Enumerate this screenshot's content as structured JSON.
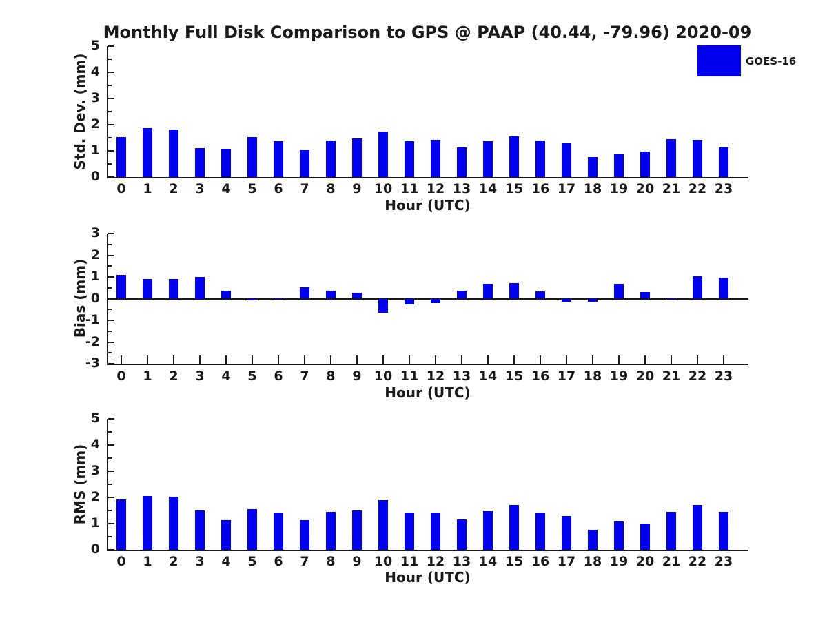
{
  "title": "Monthly Full Disk Comparison to GPS @ PAAP (40.44, -79.96) 2020-09",
  "legend": {
    "label": "GOES-16",
    "color": "#0000EE",
    "position": "top-right"
  },
  "chart_data": [
    {
      "type": "bar",
      "key": "std-dev",
      "ylabel": "Std. Dev. (mm)",
      "xlabel": "Hour (UTC)",
      "ylim": [
        0,
        5
      ],
      "yticks": [
        0,
        1,
        2,
        3,
        4,
        5
      ],
      "ytick_labels": [
        "0",
        "1",
        "2",
        "3",
        "4",
        "5"
      ],
      "minor_tick_interval": 0.5,
      "grid": false,
      "categories": [
        0,
        1,
        2,
        3,
        4,
        5,
        6,
        7,
        8,
        9,
        10,
        11,
        12,
        13,
        14,
        15,
        16,
        17,
        18,
        19,
        20,
        21,
        22,
        23
      ],
      "series": [
        {
          "name": "GOES-16",
          "color": "#0000EE",
          "values": [
            1.53,
            1.86,
            1.82,
            1.11,
            1.07,
            1.53,
            1.38,
            1.02,
            1.4,
            1.47,
            1.74,
            1.38,
            1.41,
            1.14,
            1.36,
            1.54,
            1.4,
            1.3,
            0.76,
            0.86,
            0.98,
            1.46,
            1.41,
            1.12
          ]
        }
      ]
    },
    {
      "type": "bar",
      "key": "bias",
      "ylabel": "Bias (mm)",
      "xlabel": "Hour (UTC)",
      "ylim": [
        -3,
        3
      ],
      "yticks": [
        -3,
        -2,
        -1,
        0,
        1,
        2,
        3
      ],
      "ytick_labels": [
        "-3",
        "-2",
        "-1",
        "0",
        "1",
        "2",
        "3"
      ],
      "minor_tick_interval": 0.5,
      "grid": false,
      "zero_line": true,
      "categories": [
        0,
        1,
        2,
        3,
        4,
        5,
        6,
        7,
        8,
        9,
        10,
        11,
        12,
        13,
        14,
        15,
        16,
        17,
        18,
        19,
        20,
        21,
        22,
        23
      ],
      "series": [
        {
          "name": "GOES-16",
          "color": "#0000EE",
          "values": [
            1.1,
            0.92,
            0.92,
            1.0,
            0.38,
            -0.07,
            0.04,
            0.51,
            0.38,
            0.26,
            -0.65,
            -0.27,
            -0.2,
            0.36,
            0.69,
            0.73,
            0.33,
            -0.13,
            -0.13,
            0.69,
            0.29,
            0.05,
            1.04,
            0.98
          ]
        }
      ]
    },
    {
      "type": "bar",
      "key": "rms",
      "ylabel": "RMS (mm)",
      "xlabel": "Hour (UTC)",
      "ylim": [
        0,
        5
      ],
      "yticks": [
        0,
        1,
        2,
        3,
        4,
        5
      ],
      "ytick_labels": [
        "0",
        "1",
        "2",
        "3",
        "4",
        "5"
      ],
      "minor_tick_interval": 0.5,
      "grid": false,
      "categories": [
        0,
        1,
        2,
        3,
        4,
        5,
        6,
        7,
        8,
        9,
        10,
        11,
        12,
        13,
        14,
        15,
        16,
        17,
        18,
        19,
        20,
        21,
        22,
        23
      ],
      "series": [
        {
          "name": "GOES-16",
          "color": "#0000EE",
          "values": [
            1.91,
            2.06,
            2.03,
            1.49,
            1.13,
            1.56,
            1.41,
            1.14,
            1.45,
            1.51,
            1.9,
            1.43,
            1.43,
            1.17,
            1.48,
            1.7,
            1.41,
            1.28,
            0.77,
            1.07,
            0.99,
            1.46,
            1.72,
            1.45
          ]
        }
      ]
    }
  ]
}
